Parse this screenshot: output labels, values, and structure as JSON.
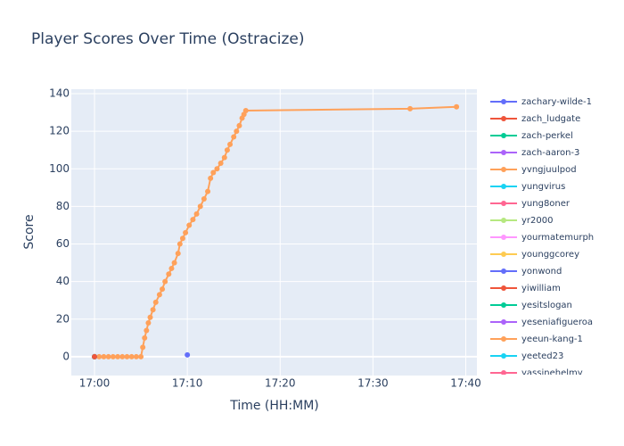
{
  "chart_data": {
    "type": "line",
    "title": "Player Scores Over Time (Ostracize)",
    "xlabel": "Time (HH:MM)",
    "ylabel": "Score",
    "xlim": [
      -2.5,
      41.2
    ],
    "ylim": [
      -10,
      142.4
    ],
    "xticks": [
      {
        "value": 0,
        "label": "17:00"
      },
      {
        "value": 10,
        "label": "17:10"
      },
      {
        "value": 20,
        "label": "17:20"
      },
      {
        "value": 30,
        "label": "17:30"
      },
      {
        "value": 40,
        "label": "17:40"
      }
    ],
    "yticks": [
      0,
      20,
      40,
      60,
      80,
      100,
      120,
      140
    ],
    "grid": true,
    "legend": "right",
    "series": [
      {
        "name": "zachary-wilde-1",
        "color": "#636efa",
        "x": [
          10
        ],
        "values": [
          1
        ]
      },
      {
        "name": "zach_ludgate",
        "color": "#EF553B",
        "x": [
          0
        ],
        "values": [
          0
        ]
      },
      {
        "name": "zach-perkel",
        "color": "#00cc96",
        "x": [
          0
        ],
        "values": [
          0
        ]
      },
      {
        "name": "zach-aaron-3",
        "color": "#ab63fa",
        "x": [
          0
        ],
        "values": [
          0
        ]
      },
      {
        "name": "yvngjuulpod",
        "color": "#FFA15A",
        "x": [
          0,
          0.5,
          1,
          1.5,
          2,
          2.5,
          3,
          3.5,
          4,
          4.5,
          5,
          5.2,
          5.4,
          5.6,
          5.8,
          6,
          6.3,
          6.6,
          7,
          7.3,
          7.6,
          8,
          8.3,
          8.6,
          9,
          9.2,
          9.5,
          9.8,
          10.2,
          10.6,
          11,
          11.4,
          11.8,
          12.2,
          12.5,
          12.8,
          13.2,
          13.6,
          14,
          14.3,
          14.6,
          15,
          15.3,
          15.6,
          15.9,
          16.1,
          16.3,
          34,
          39
        ],
        "values": [
          0,
          0,
          0,
          0,
          0,
          0,
          0,
          0,
          0,
          0,
          0,
          5,
          10,
          14,
          18,
          21,
          25,
          29,
          33,
          36,
          40,
          44,
          47,
          50,
          55,
          60,
          63,
          66,
          70,
          73,
          76,
          80,
          84,
          88,
          95,
          98,
          100,
          103,
          106,
          110,
          113,
          117,
          120,
          123,
          127,
          129,
          131,
          132,
          133
        ]
      },
      {
        "name": "yungvirus",
        "color": "#19d3f3",
        "x": [
          0
        ],
        "values": [
          0
        ]
      },
      {
        "name": "yung8oner",
        "color": "#FF6692",
        "x": [
          0
        ],
        "values": [
          0
        ]
      },
      {
        "name": "yr2000",
        "color": "#B6E880",
        "x": [
          0
        ],
        "values": [
          0
        ]
      },
      {
        "name": "yourmatemurph",
        "color": "#FF97FF",
        "x": [
          0
        ],
        "values": [
          0
        ]
      },
      {
        "name": "younggcorey",
        "color": "#FECB52",
        "x": [
          0
        ],
        "values": [
          0
        ]
      },
      {
        "name": "yonwond",
        "color": "#636efa",
        "x": [
          0
        ],
        "values": [
          0
        ]
      },
      {
        "name": "yiwilliam",
        "color": "#EF553B",
        "x": [
          0
        ],
        "values": [
          0
        ]
      },
      {
        "name": "yesitslogan",
        "color": "#00cc96",
        "x": [
          0
        ],
        "values": [
          0
        ]
      },
      {
        "name": "yeseniafigueroa",
        "color": "#ab63fa",
        "x": [
          0
        ],
        "values": [
          0
        ]
      },
      {
        "name": "yeeun-kang-1",
        "color": "#FFA15A",
        "x": [
          0
        ],
        "values": [
          0
        ]
      },
      {
        "name": "yeeted23",
        "color": "#19d3f3",
        "x": [
          0
        ],
        "values": [
          0
        ]
      },
      {
        "name": "yassinehelmy",
        "color": "#FF6692",
        "x": [
          0
        ],
        "values": [
          0
        ]
      }
    ]
  }
}
